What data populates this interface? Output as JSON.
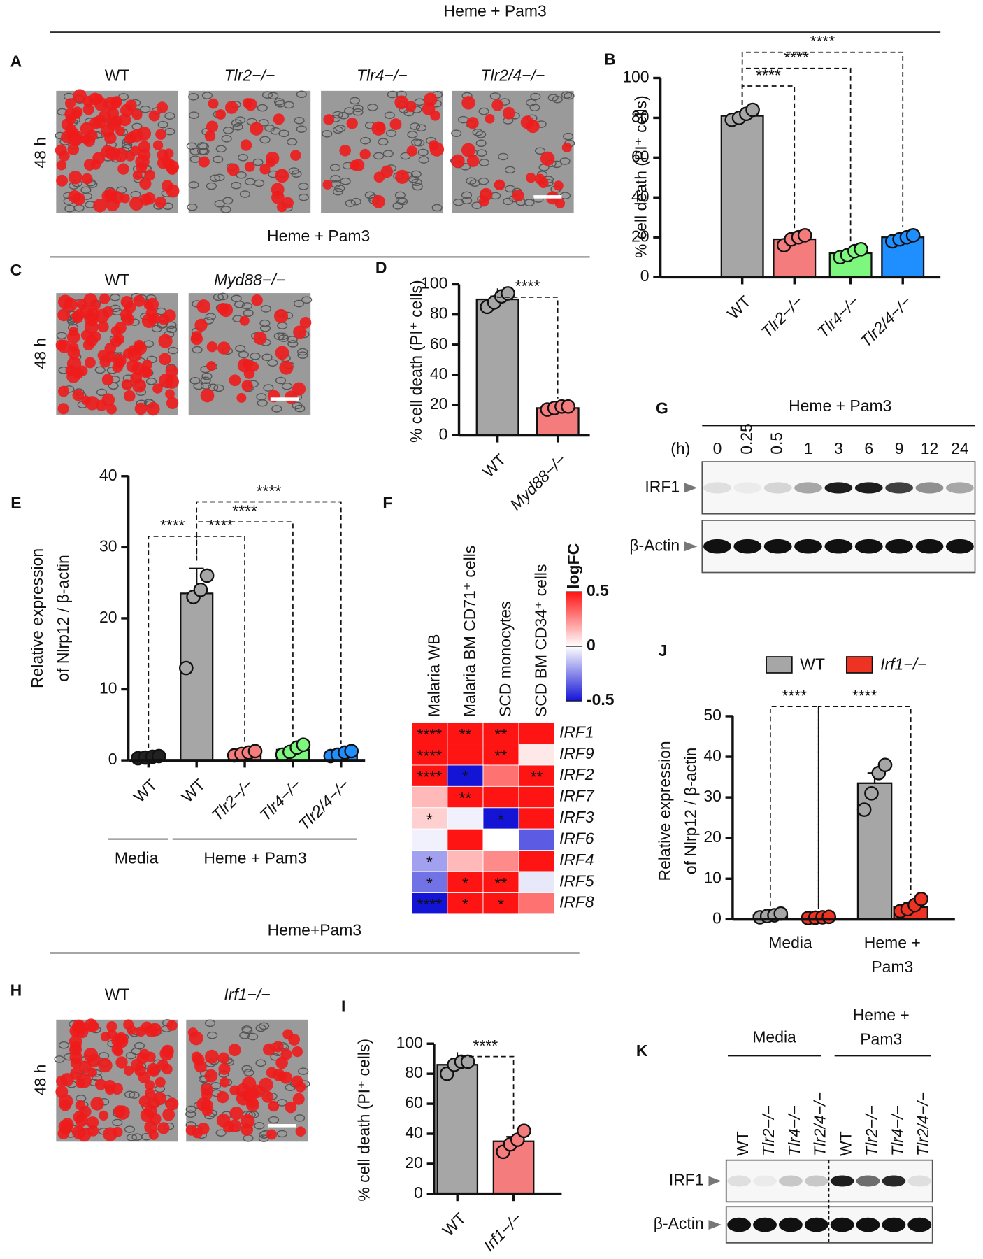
{
  "panel_letters": [
    "A",
    "B",
    "C",
    "D",
    "E",
    "F",
    "G",
    "H",
    "I",
    "J",
    "K"
  ],
  "micrographs": [
    {
      "header": "Heme + Pam3",
      "time": "48 h",
      "labels": [
        "WT",
        "Tlr2−/−",
        "Tlr4−/−",
        "Tlr2/4−/−"
      ]
    },
    {
      "header": "Heme + Pam3",
      "time": "48 h",
      "labels": [
        "WT",
        "Myd88−/−"
      ]
    },
    {
      "header": "Heme+Pam3",
      "time": "48 h",
      "labels": [
        "WT",
        "Irf1−/−"
      ]
    }
  ],
  "blots": [
    {
      "header": "Heme + Pam3",
      "unit": "(h)",
      "lanes": [
        0,
        0.25,
        0.5,
        1,
        3,
        6,
        9,
        12,
        24
      ],
      "rows": [
        "IRF1",
        "β-Actin"
      ],
      "band_intensity": [
        [
          0.1,
          0.05,
          0.15,
          0.35,
          0.95,
          0.95,
          0.8,
          0.45,
          0.35
        ],
        [
          1,
          1,
          1,
          1,
          1,
          1,
          1,
          1,
          1
        ]
      ]
    },
    {
      "groups": [
        "Media",
        "Heme + Pam3"
      ],
      "lanes": [
        "WT",
        "Tlr2−/−",
        "Tlr4−/−",
        "Tlr2/4−/−",
        "WT",
        "Tlr2−/−",
        "Tlr4−/−",
        "Tlr2/4−/−"
      ],
      "rows": [
        "IRF1",
        "β-Actin"
      ],
      "band_intensity": [
        [
          0.1,
          0.05,
          0.2,
          0.2,
          0.95,
          0.6,
          0.9,
          0.1
        ],
        [
          1,
          1,
          1,
          1,
          1,
          1,
          1,
          1
        ]
      ]
    }
  ],
  "chart_data": [
    {
      "type": "bar",
      "ylabel": "% cell death (PI⁺ cells)",
      "categories": [
        "WT",
        "Tlr2−/−",
        "Tlr4−/−",
        "Tlr2/4−/−"
      ],
      "values": [
        81,
        19,
        12,
        20
      ],
      "errors": [
        1.5,
        1.5,
        1,
        1
      ],
      "points": [
        [
          79,
          80,
          82,
          84
        ],
        [
          16,
          19,
          20,
          21
        ],
        [
          10,
          11,
          13,
          14
        ],
        [
          18,
          19,
          20,
          21
        ]
      ],
      "colors": [
        "#a6a6a6",
        "#f47c7c",
        "#7ef77e",
        "#1f8fff"
      ],
      "ylim": [
        0,
        100
      ],
      "yticks": [
        0,
        20,
        40,
        60,
        80,
        100
      ],
      "significance": [
        "****",
        "****",
        "****"
      ]
    },
    {
      "type": "bar",
      "ylabel": "% cell death (PI⁺ cells)",
      "categories": [
        "WT",
        "Myd88−/−"
      ],
      "values": [
        90,
        18
      ],
      "errors": [
        2,
        1
      ],
      "points": [
        [
          85,
          88,
          92,
          94
        ],
        [
          17,
          18,
          19,
          19
        ]
      ],
      "colors": [
        "#a6a6a6",
        "#f47c7c"
      ],
      "ylim": [
        0,
        100
      ],
      "yticks": [
        0,
        20,
        40,
        60,
        80,
        100
      ],
      "significance": [
        "****"
      ]
    },
    {
      "type": "bar",
      "ylabel": [
        "Relative expression",
        "of Nlrp12 / β-actin"
      ],
      "categories": [
        "WT",
        "WT",
        "Tlr2−/−",
        "Tlr4−/−",
        "Tlr2/4−/−"
      ],
      "group_labels": [
        "Media",
        "Heme + Pam3"
      ],
      "values": [
        0.5,
        23.5,
        1,
        1.5,
        1
      ],
      "errors": [
        0.1,
        3.5,
        0.3,
        0.4,
        0.2
      ],
      "points": [
        [
          0.3,
          0.4,
          0.5,
          0.6
        ],
        [
          13,
          23,
          24,
          26
        ],
        [
          0.7,
          0.9,
          1.1,
          1.3
        ],
        [
          0.8,
          1.2,
          1.8,
          2.2
        ],
        [
          0.6,
          0.8,
          1.1,
          1.3
        ]
      ],
      "colors": [
        "#222222",
        "#a6a6a6",
        "#f47c7c",
        "#7ef77e",
        "#1f8fff"
      ],
      "ylim": [
        0,
        40
      ],
      "yticks": [
        0,
        10,
        20,
        30,
        40
      ],
      "significance": [
        "****",
        "****",
        "****",
        "****"
      ]
    },
    {
      "type": "heatmap",
      "columns": [
        "Malaria WB",
        "Malaria BM CD71⁺ cells",
        "SCD monocytes",
        "SCD BM CD34⁺ cells"
      ],
      "rows": [
        "IRF1",
        "IRF9",
        "IRF2",
        "IRF7",
        "IRF3",
        "IRF6",
        "IRF4",
        "IRF5",
        "IRF8"
      ],
      "values": [
        [
          0.5,
          0.5,
          0.5,
          0.5
        ],
        [
          0.5,
          0.5,
          0.5,
          0.05
        ],
        [
          0.5,
          -0.5,
          0.3,
          0.5
        ],
        [
          0.15,
          0.5,
          0.5,
          0.5
        ],
        [
          0.1,
          -0.03,
          -0.5,
          0.5
        ],
        [
          -0.03,
          0.5,
          0,
          -0.35
        ],
        [
          -0.2,
          0.15,
          0.25,
          0.5
        ],
        [
          -0.3,
          0.5,
          0.5,
          -0.05
        ],
        [
          -0.5,
          0.5,
          0.5,
          0.3
        ]
      ],
      "stars": [
        [
          "****",
          "**",
          "**",
          null
        ],
        [
          "****",
          null,
          "**",
          null
        ],
        [
          "****",
          "*",
          null,
          "**"
        ],
        [
          null,
          "**",
          null,
          null
        ],
        [
          "*",
          null,
          "*",
          null
        ],
        [
          null,
          null,
          null,
          null
        ],
        [
          "*",
          null,
          null,
          null
        ],
        [
          "*",
          "*",
          "**",
          null
        ],
        [
          "****",
          "*",
          "*",
          null
        ]
      ],
      "colorbar_label": "logFC",
      "zlim": [
        -0.5,
        0.5
      ],
      "zticks": [
        0.5,
        0,
        -0.5
      ]
    },
    {
      "type": "bar",
      "ylabel": "% cell death (PI⁺ cells)",
      "categories": [
        "WT",
        "Irf1−/−"
      ],
      "values": [
        86,
        35
      ],
      "errors": [
        3,
        3
      ],
      "points": [
        [
          80,
          86,
          88,
          88
        ],
        [
          28,
          33,
          36,
          42
        ]
      ],
      "colors": [
        "#a6a6a6",
        "#f47c7c"
      ],
      "ylim": [
        0,
        100
      ],
      "yticks": [
        0,
        20,
        40,
        60,
        80,
        100
      ],
      "significance": [
        "****"
      ]
    },
    {
      "type": "bar",
      "ylabel": [
        "Relative expression",
        "of Nlrp12 / β-actin"
      ],
      "categories": [
        "Media",
        "Heme + Pam3"
      ],
      "series": [
        {
          "name": "WT",
          "color": "#a6a6a6",
          "values": [
            1,
            33.5
          ],
          "errors": [
            0.3,
            2.5
          ],
          "points": [
            [
              0.5,
              0.8,
              1,
              1.4
            ],
            [
              27,
              31,
              36,
              38
            ]
          ]
        },
        {
          "name": "Irf1−/−",
          "color": "#ee3322",
          "values": [
            0.5,
            3
          ],
          "errors": [
            0.1,
            1
          ],
          "points": [
            [
              0.3,
              0.4,
              0.5,
              0.6
            ],
            [
              2,
              2.5,
              3.5,
              5
            ]
          ]
        }
      ],
      "ylim": [
        0,
        50
      ],
      "yticks": [
        0,
        10,
        20,
        30,
        40,
        50
      ],
      "significance": [
        "****",
        "****"
      ]
    }
  ]
}
